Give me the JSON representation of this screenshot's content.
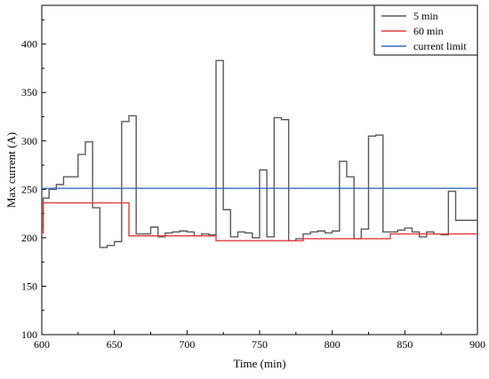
{
  "chart_data": {
    "type": "line",
    "title": "",
    "xlabel": "Time (min)",
    "ylabel": "Max current (A)",
    "xlim": [
      600,
      900
    ],
    "ylim": [
      100,
      440
    ],
    "xticks": [
      600,
      650,
      700,
      750,
      800,
      850,
      900
    ],
    "yticks": [
      100,
      150,
      200,
      250,
      300,
      350,
      400
    ],
    "grid": false,
    "legend": "top-right",
    "series": [
      {
        "name": "5 min",
        "color": "#5a5a5a",
        "step": true,
        "x": [
          600,
          601,
          605,
          610,
          615,
          625,
          630,
          635,
          640,
          645,
          650,
          655,
          660,
          665,
          670,
          675,
          680,
          685,
          690,
          695,
          700,
          705,
          710,
          715,
          720,
          725,
          730,
          735,
          740,
          745,
          750,
          755,
          760,
          765,
          770,
          775,
          780,
          785,
          790,
          795,
          800,
          805,
          810,
          815,
          820,
          825,
          830,
          835,
          840,
          845,
          850,
          855,
          860,
          865,
          870,
          875,
          880,
          885,
          890,
          895,
          900
        ],
        "y": [
          210,
          241,
          250,
          255,
          263,
          286,
          299,
          231,
          190,
          192,
          196,
          320,
          326,
          204,
          204,
          211,
          201,
          205,
          206,
          207,
          206,
          202,
          204,
          203,
          383,
          229,
          201,
          206,
          205,
          200,
          270,
          201,
          324,
          322,
          197,
          199,
          204,
          206,
          207,
          205,
          207,
          279,
          263,
          199,
          209,
          305,
          306,
          206,
          206,
          208,
          210,
          206,
          201,
          206,
          204,
          203,
          248,
          218,
          218,
          218,
          218
        ]
      },
      {
        "name": "60 min",
        "color": "#e03b3b",
        "step": true,
        "x": [
          600,
          601,
          660,
          720,
          780,
          840,
          900
        ],
        "y": [
          205,
          236,
          202,
          197,
          199,
          204,
          204
        ]
      },
      {
        "name": "current limit",
        "color": "#2f6fc4",
        "step": false,
        "x": [
          600,
          900
        ],
        "y": [
          251,
          251
        ]
      }
    ]
  }
}
